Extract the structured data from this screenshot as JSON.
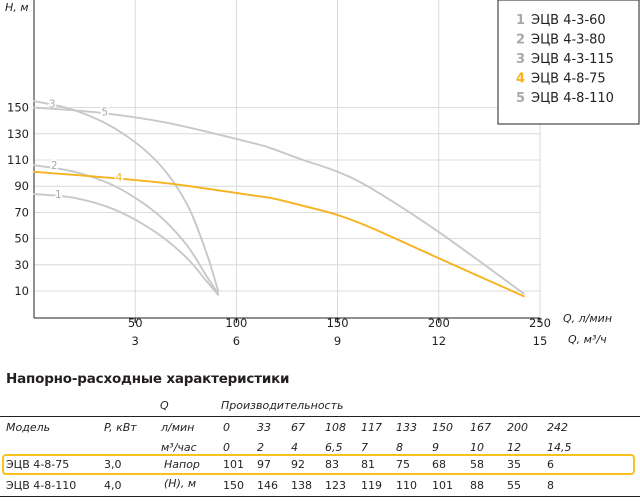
{
  "chart_data": {
    "type": "line",
    "y_axis": {
      "label": "H, м",
      "ticks": [
        10,
        30,
        50,
        70,
        90,
        110,
        130,
        150
      ],
      "range": [
        0,
        160
      ]
    },
    "x_axis_top": {
      "label": "Q, л/мин",
      "ticks": [
        50,
        100,
        150,
        200,
        250
      ],
      "range": [
        0,
        250
      ]
    },
    "x_axis_bottom": {
      "label": "Q, м³/ч",
      "ticks": [
        3,
        6,
        9,
        12,
        15
      ],
      "range": [
        0,
        15
      ]
    },
    "grid": true,
    "legend": {
      "placement": "top-right"
    },
    "series": [
      {
        "id": "1",
        "name": "ЭЦВ 4-3-60",
        "color": "#c7c8ca",
        "label_color": "#a7a9ac",
        "points": [
          [
            0,
            84
          ],
          [
            20,
            81
          ],
          [
            40,
            72
          ],
          [
            60,
            55
          ],
          [
            75,
            36
          ],
          [
            85,
            18
          ],
          [
            91,
            7
          ]
        ]
      },
      {
        "id": "2",
        "name": "ЭЦВ 4-3-80",
        "color": "#c7c8ca",
        "label_color": "#a7a9ac",
        "points": [
          [
            0,
            106
          ],
          [
            20,
            101
          ],
          [
            40,
            90
          ],
          [
            60,
            70
          ],
          [
            75,
            46
          ],
          [
            85,
            22
          ],
          [
            91,
            8
          ]
        ]
      },
      {
        "id": "3",
        "name": "ЭЦВ 4-3-115",
        "color": "#c7c8ca",
        "label_color": "#a7a9ac",
        "points": [
          [
            0,
            155
          ],
          [
            20,
            148
          ],
          [
            40,
            134
          ],
          [
            60,
            110
          ],
          [
            75,
            78
          ],
          [
            85,
            40
          ],
          [
            91,
            10
          ]
        ]
      },
      {
        "id": "4",
        "name": "ЭЦВ 4-8-75",
        "color": "#f7b21e",
        "label_color": "#f7b21e",
        "points": [
          [
            0,
            101
          ],
          [
            33,
            97
          ],
          [
            67,
            92
          ],
          [
            108,
            83
          ],
          [
            117,
            81
          ],
          [
            133,
            75
          ],
          [
            150,
            68
          ],
          [
            167,
            58
          ],
          [
            200,
            35
          ],
          [
            242,
            6
          ]
        ]
      },
      {
        "id": "5",
        "name": "ЭЦВ 4-8-110",
        "color": "#c7c8ca",
        "label_color": "#a7a9ac",
        "points": [
          [
            0,
            150
          ],
          [
            33,
            146
          ],
          [
            67,
            138
          ],
          [
            108,
            123
          ],
          [
            117,
            119
          ],
          [
            133,
            110
          ],
          [
            150,
            101
          ],
          [
            167,
            88
          ],
          [
            200,
            55
          ],
          [
            242,
            8
          ]
        ]
      }
    ]
  },
  "table": {
    "title": "Напорно-расходные характеристики",
    "header": {
      "model": "Модель",
      "power": "P, кВт",
      "q": "Q",
      "productivity": "Производительность",
      "unit_lmin": "л/мин",
      "unit_m3h": "м³/час",
      "head_label_1": "Напор",
      "head_label_2": "(H), м"
    },
    "flow_lmin": [
      "0",
      "33",
      "67",
      "108",
      "117",
      "133",
      "150",
      "167",
      "200",
      "242"
    ],
    "flow_m3h": [
      "0",
      "2",
      "4",
      "6,5",
      "7",
      "8",
      "9",
      "10",
      "12",
      "14,5"
    ],
    "rows": [
      {
        "model": "ЭЦВ 4-8-75",
        "power": "3,0",
        "values": [
          "101",
          "97",
          "92",
          "83",
          "81",
          "75",
          "68",
          "58",
          "35",
          "6"
        ],
        "highlighted": true
      },
      {
        "model": "ЭЦВ 4-8-110",
        "power": "4,0",
        "values": [
          "150",
          "146",
          "138",
          "123",
          "119",
          "110",
          "101",
          "88",
          "55",
          "8"
        ],
        "highlighted": false
      }
    ]
  }
}
